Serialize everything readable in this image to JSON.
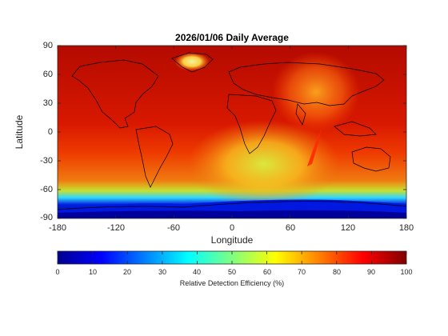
{
  "map": {
    "title": "2026/01/06 Daily Average",
    "xlabel": "Longitude",
    "ylabel": "Latitude",
    "xticks": [
      "-180",
      "-120",
      "-60",
      "0",
      "60",
      "120",
      "180"
    ],
    "yticks": [
      "90",
      "60",
      "30",
      "0",
      "-30",
      "-60",
      "-90"
    ],
    "xlim": [
      -180,
      180
    ],
    "ylim": [
      -90,
      90
    ],
    "projection": "equirectangular",
    "field": "relative detection efficiency",
    "colormap": "jet"
  },
  "colorbar": {
    "label": "Relative Detection Efficiency (%)",
    "ticks": [
      "0",
      "10",
      "20",
      "30",
      "40",
      "50",
      "60",
      "70",
      "80",
      "90",
      "100"
    ],
    "range": [
      0,
      100
    ],
    "orientation": "horizontal",
    "colors": [
      "#00008f",
      "#0000ff",
      "#0080ff",
      "#00ffff",
      "#80ff80",
      "#ffff00",
      "#ff8000",
      "#ff0000",
      "#800000"
    ]
  }
}
